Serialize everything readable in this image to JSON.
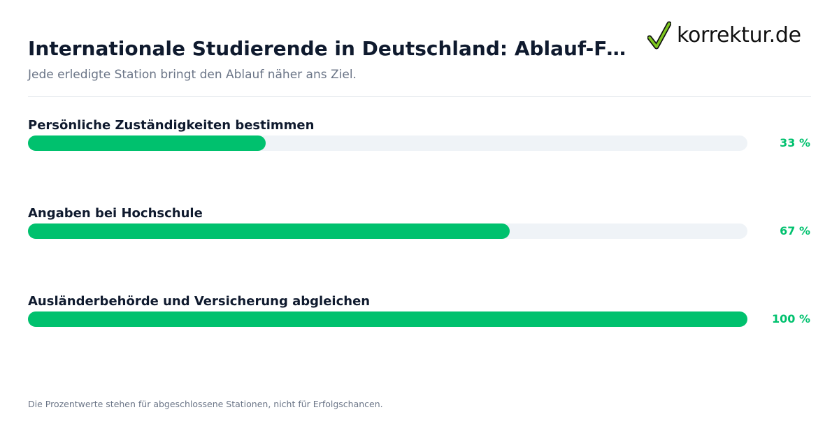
{
  "header": {
    "title": "Internationale Studierende in Deutschland: Ablauf-Fortschritt",
    "subtitle": "Jede erledigte Station bringt den Ablauf näher ans Ziel."
  },
  "logo": {
    "text": "korrektur.de",
    "icon": "checkmark-icon",
    "check_color": "#7ec820"
  },
  "chart_data": {
    "type": "bar",
    "orientation": "horizontal",
    "categories": [
      "Persönliche Zuständigkeiten bestimmen",
      "Angaben bei Hochschule",
      "Ausländerbehörde und Versicherung abgleichen"
    ],
    "values": [
      33,
      67,
      100
    ],
    "value_labels": [
      "33 %",
      "67 %",
      "100 %"
    ],
    "xlim": [
      0,
      100
    ],
    "unit": "%",
    "grid": false,
    "colors": {
      "bar": "#00c16e",
      "track": "#eff3f7",
      "value_text": "#00c16e"
    }
  },
  "footnote": "Die Prozentwerte stehen für abgeschlossene Stationen, nicht für Erfolgschancen."
}
